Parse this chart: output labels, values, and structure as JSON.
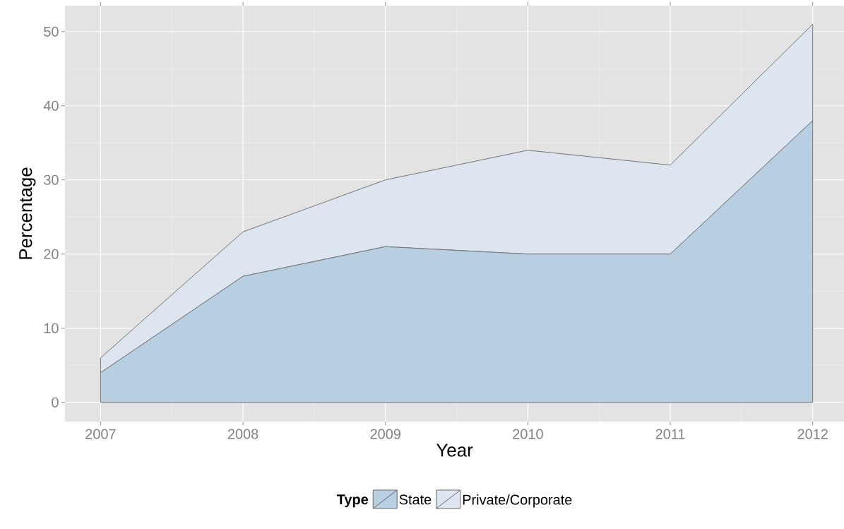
{
  "chart_data": {
    "type": "area",
    "stacked": true,
    "xlabel": "Year",
    "ylabel": "Percentage",
    "legend_title": "Type",
    "x": [
      2007,
      2008,
      2009,
      2010,
      2011,
      2012
    ],
    "series": [
      {
        "name": "State",
        "color": "#b8cfe2",
        "values": [
          4,
          17,
          21,
          20,
          20,
          38
        ]
      },
      {
        "name": "Private/Corporate",
        "color": "#dde6f0",
        "values": [
          2,
          6,
          9,
          14,
          12,
          13
        ]
      }
    ],
    "xlim": [
      2006.75,
      2012.22
    ],
    "ylim": [
      -2.6,
      53.5
    ],
    "xticks": [
      2007,
      2008,
      2009,
      2010,
      2011,
      2012
    ],
    "yticks": [
      0,
      10,
      20,
      30,
      40,
      50
    ],
    "grid": true,
    "legend": "bottom"
  }
}
